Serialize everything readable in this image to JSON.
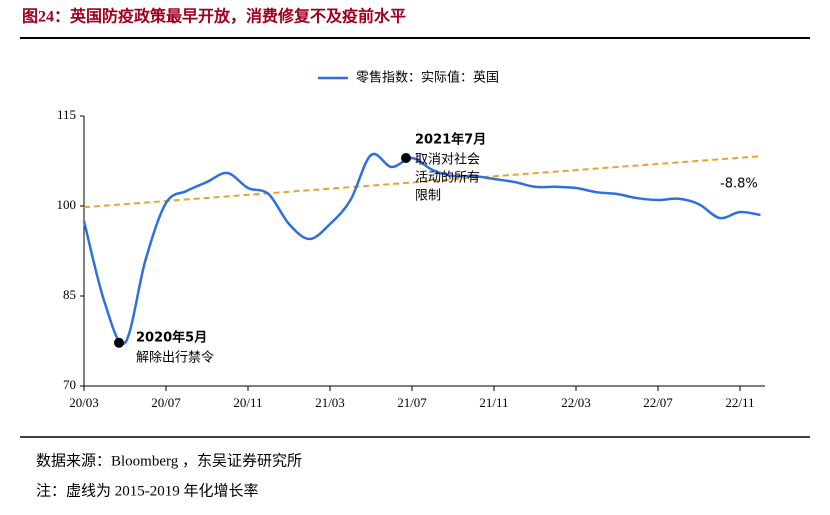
{
  "header": {
    "title": "图24：英国防疫政策最早开放，消费修复不及疫前水平"
  },
  "chart_data": {
    "type": "line",
    "categories": [
      "20/03",
      null,
      null,
      null,
      "20/07",
      null,
      null,
      null,
      "20/11",
      null,
      null,
      null,
      "21/03",
      null,
      null,
      null,
      "21/07",
      null,
      null,
      null,
      "21/11",
      null,
      null,
      null,
      "22/03",
      null,
      null,
      null,
      "22/07",
      null,
      null,
      null,
      "22/11",
      null
    ],
    "series": [
      {
        "name": "零售指数：实际值：英国",
        "color": "#2f6fe0",
        "values": [
          97.5,
          84,
          77.2,
          91,
          100.5,
          102.5,
          104,
          105.5,
          103,
          102,
          97,
          94.5,
          97,
          101,
          108.5,
          106.5,
          108,
          106,
          105,
          105,
          104.5,
          104,
          103.2,
          103.2,
          103,
          102.3,
          102,
          101.3,
          101,
          101.2,
          100.3,
          98,
          99,
          98.5
        ]
      }
    ],
    "trend_line": {
      "color": "#f0a030",
      "values": [
        99.8,
        108.3
      ]
    },
    "ylim": [
      70,
      115
    ],
    "yticks": [
      70,
      85,
      100,
      115
    ],
    "annotations": [
      {
        "title": "2020年5月",
        "lines": [
          "解除出行禁令"
        ]
      },
      {
        "title": "2021年7月",
        "lines": [
          "取消对社会",
          "活动的所有",
          "限制"
        ]
      },
      {
        "title": "-8.8%",
        "lines": []
      }
    ]
  },
  "footer": {
    "source": "数据来源：Bloomberg ，东吴证券研究所",
    "note": "注：虚线为 2015-2019 年化增长率"
  }
}
